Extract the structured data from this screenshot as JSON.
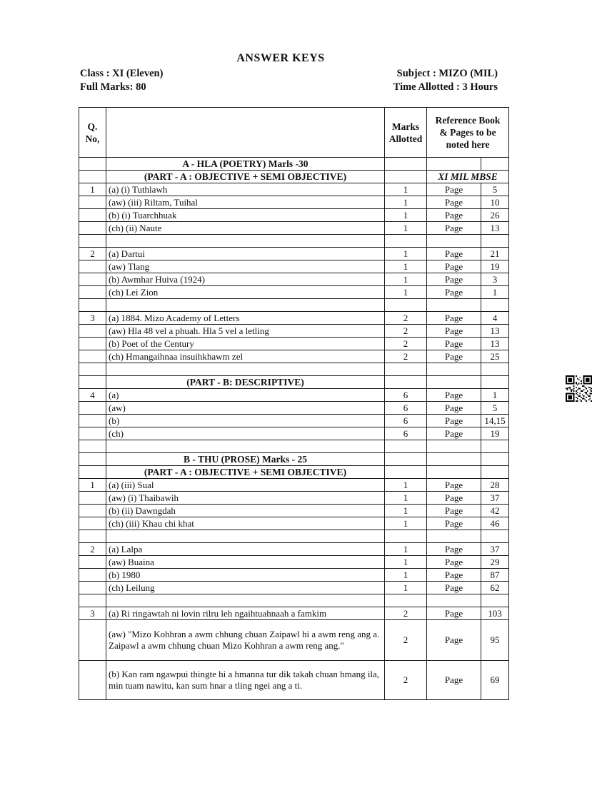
{
  "page": {
    "title": "ANSWER KEYS",
    "meta_left": [
      "Class : XI (Eleven)",
      "Full Marks: 80"
    ],
    "meta_right": [
      "Subject : MIZO (MIL)",
      "Time Allotted : 3 Hours"
    ]
  },
  "table": {
    "headers": {
      "qno": "Q.\nNo,",
      "question": "",
      "marks": "Marks\nAllotted",
      "reference": "Reference Book\n& Pages to be\nnoted here"
    },
    "rows": [
      {
        "type": "section",
        "text": "A - HLA (POETRY) Marls -30"
      },
      {
        "type": "section",
        "text": "(PART - A : OBJECTIVE + SEMI OBJECTIVE)",
        "ref": "XI MIL MBSE"
      },
      {
        "type": "item",
        "qno": "1",
        "text": "(a) (i) Tuthlawh",
        "marks": "1",
        "page_label": "Page",
        "page": "5"
      },
      {
        "type": "item",
        "qno": "",
        "text": "(aw) (iii) Riltam, Tuihal",
        "marks": "1",
        "page_label": "Page",
        "page": "10"
      },
      {
        "type": "item",
        "qno": "",
        "text": "(b) (i) Tuarchhuak",
        "marks": "1",
        "page_label": "Page",
        "page": "26"
      },
      {
        "type": "item",
        "qno": "",
        "text": "(ch) (ii) Naute",
        "marks": "1",
        "page_label": "Page",
        "page": "13"
      },
      {
        "type": "empty"
      },
      {
        "type": "item",
        "qno": "2",
        "text": "(a) Dartui",
        "marks": "1",
        "page_label": "Page",
        "page": "21"
      },
      {
        "type": "item",
        "qno": "",
        "text": "(aw) Tlang",
        "marks": "1",
        "page_label": "Page",
        "page": "19"
      },
      {
        "type": "item",
        "qno": "",
        "text": "(b) Awmhar Huiva (1924)",
        "marks": "1",
        "page_label": "Page",
        "page": "3"
      },
      {
        "type": "item",
        "qno": "",
        "text": "(ch) Lei Zion",
        "marks": "1",
        "page_label": "Page",
        "page": "1"
      },
      {
        "type": "empty"
      },
      {
        "type": "item",
        "qno": "3",
        "text": "(a) 1884. Mizo Academy of Letters",
        "marks": "2",
        "page_label": "Page",
        "page": "4"
      },
      {
        "type": "item",
        "qno": "",
        "text": "(aw) Hla 48 vel a phuah. Hla 5 vel a letling",
        "marks": "2",
        "page_label": "Page",
        "page": "13"
      },
      {
        "type": "item",
        "qno": "",
        "text": "(b) Poet of the Century",
        "marks": "2",
        "page_label": "Page",
        "page": "13"
      },
      {
        "type": "item",
        "qno": "",
        "text": "(ch) Hmangaihnaa insuihkhawm zel",
        "marks": "2",
        "page_label": "Page",
        "page": "25"
      },
      {
        "type": "empty"
      },
      {
        "type": "section",
        "text": "(PART - B: DESCRIPTIVE)"
      },
      {
        "type": "item",
        "qno": "4",
        "text": "(a)",
        "marks": "6",
        "page_label": "Page",
        "page": "1"
      },
      {
        "type": "item",
        "qno": "",
        "text": "(aw)",
        "marks": "6",
        "page_label": "Page",
        "page": "5"
      },
      {
        "type": "item",
        "qno": "",
        "text": "(b)",
        "marks": "6",
        "page_label": "Page",
        "page": "14,15"
      },
      {
        "type": "item",
        "qno": "",
        "text": "(ch)",
        "marks": "6",
        "page_label": "Page",
        "page": "19"
      },
      {
        "type": "empty"
      },
      {
        "type": "section",
        "text": "B - THU (PROSE) Marks - 25"
      },
      {
        "type": "section",
        "text": "(PART - A : OBJECTIVE + SEMI OBJECTIVE)"
      },
      {
        "type": "item",
        "qno": "1",
        "text": "(a) (iii) Sual",
        "marks": "1",
        "page_label": "Page",
        "page": "28"
      },
      {
        "type": "item",
        "qno": "",
        "text": "(aw) (i) Thaibawih",
        "marks": "1",
        "page_label": "Page",
        "page": "37"
      },
      {
        "type": "item",
        "qno": "",
        "text": "(b) (ii) Dawngdah",
        "marks": "1",
        "page_label": "Page",
        "page": "42"
      },
      {
        "type": "item",
        "qno": "",
        "text": "(ch) (iii) Khau chi khat",
        "marks": "1",
        "page_label": "Page",
        "page": "46"
      },
      {
        "type": "empty"
      },
      {
        "type": "item",
        "qno": "2",
        "text": "(a) Lalpa",
        "marks": "1",
        "page_label": "Page",
        "page": "37"
      },
      {
        "type": "item",
        "qno": "",
        "text": "(aw) Buaina",
        "marks": "1",
        "page_label": "Page",
        "page": "29"
      },
      {
        "type": "item",
        "qno": "",
        "text": "(b) 1980",
        "marks": "1",
        "page_label": "Page",
        "page": "87"
      },
      {
        "type": "item",
        "qno": "",
        "text": "(ch) Leilung",
        "marks": "1",
        "page_label": "Page",
        "page": "62"
      },
      {
        "type": "empty"
      },
      {
        "type": "item",
        "qno": "3",
        "text": "(a) Ri ringawtah ni lovin rilru leh ngaihtuahnaah a famkim",
        "marks": "2",
        "page_label": "Page",
        "page": "103"
      },
      {
        "type": "item",
        "qno": "",
        "text": "(aw) \"Mizo Kohhran a awm chhung chuan Zaipawl hi a awm reng ang a. Zaipawl a awm chhung chuan Mizo Kohhran a awm reng ang.\"",
        "marks": "2",
        "page_label": "Page",
        "page": "95",
        "size": "h3"
      },
      {
        "type": "item",
        "qno": "",
        "text": "(b) Kan ram ngawpui thingte hi a hmanna tur dik takah chuan hmang ila, min tuam nawitu, kan sum hnar a tling ngei ang a ti.",
        "marks": "2",
        "page_label": "Page",
        "page": "69",
        "size": "h2"
      }
    ]
  },
  "icons": {
    "qr": "qr-code-icon"
  }
}
